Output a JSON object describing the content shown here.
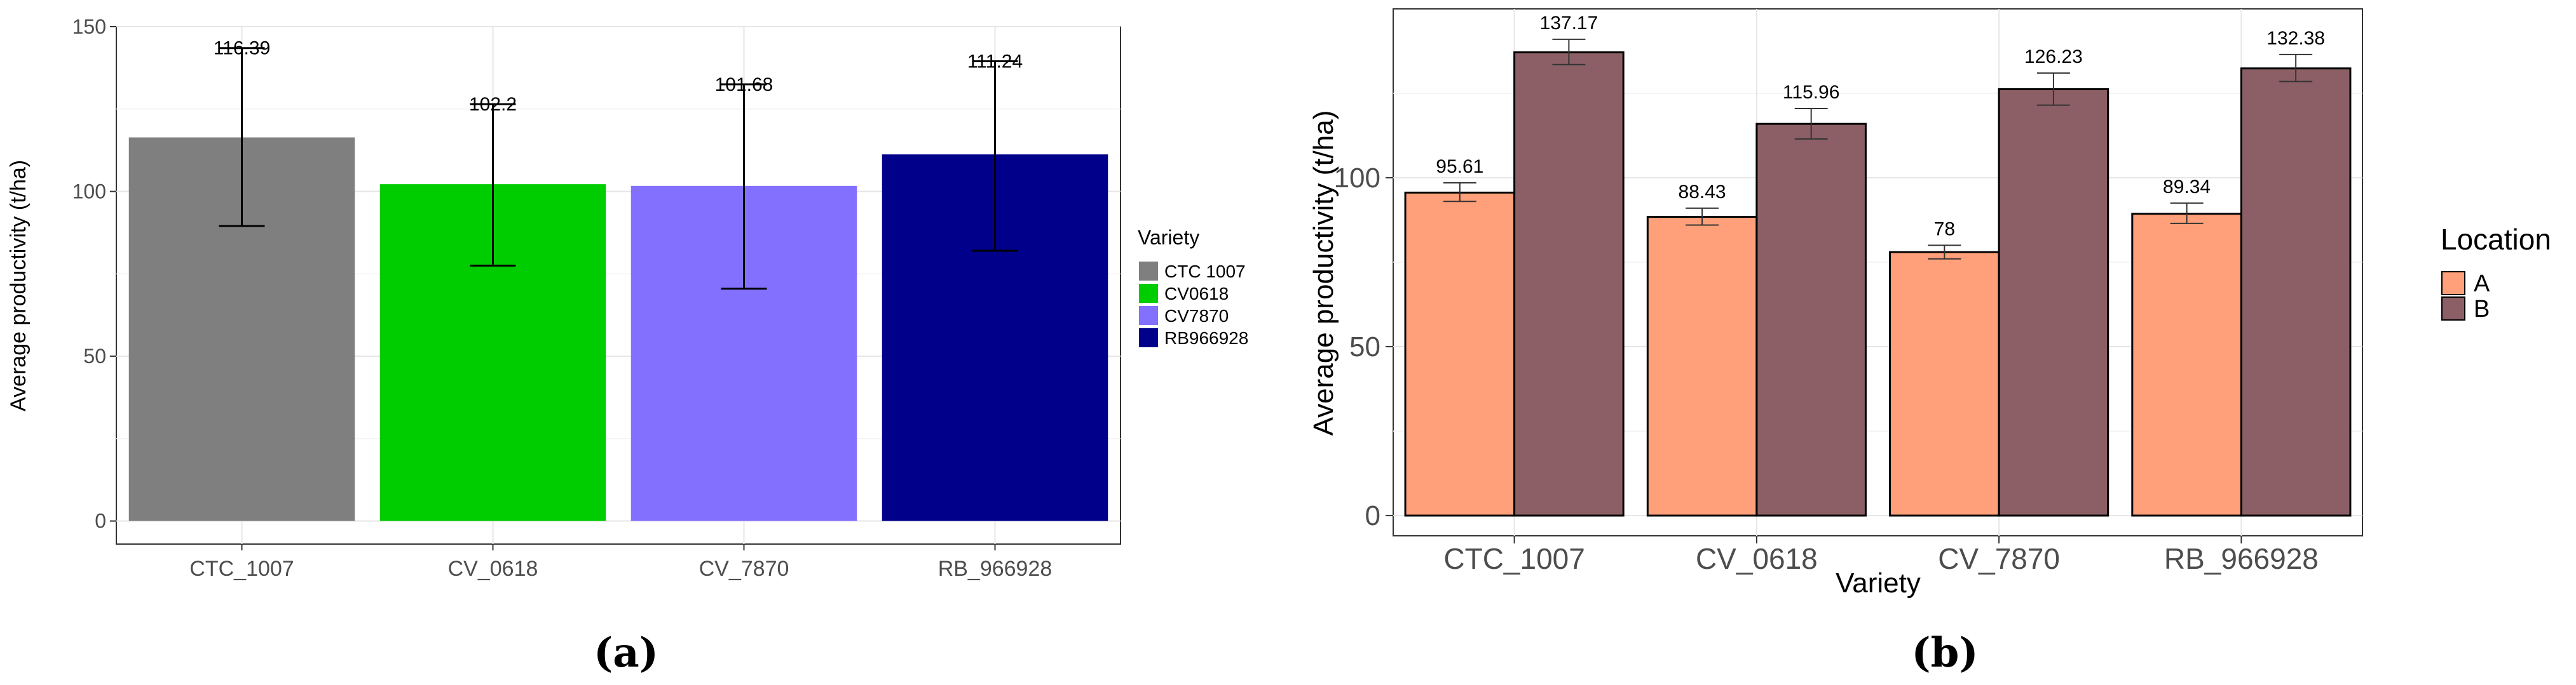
{
  "chart_data": [
    {
      "id": "a",
      "type": "bar",
      "panel_label": "(a)",
      "title": "",
      "xlabel": "",
      "ylabel": "Average productivity (t/ha)",
      "categories": [
        "CTC_1007",
        "CV_0618",
        "CV_7870",
        "RB_966928"
      ],
      "values": [
        116.39,
        102.2,
        101.68,
        111.24
      ],
      "value_labels": [
        "116.39",
        "102.2",
        "101.68",
        "111.24"
      ],
      "error_low": [
        89.5,
        77.5,
        70.5,
        82.0
      ],
      "error_high": [
        143.5,
        126.5,
        132.5,
        139.5
      ],
      "colors": [
        "#7f7f7f",
        "#00cd00",
        "#8470ff",
        "#00008b"
      ],
      "ylim": [
        -7,
        150
      ],
      "yticks": [
        0,
        50,
        100,
        150
      ],
      "ytick_labels": [
        "0",
        "50",
        "100",
        "150"
      ],
      "grid": true,
      "legend": {
        "title": "Variety",
        "position": "right",
        "entries": [
          "CTC 1007",
          "CV0618",
          "CV7870",
          "RB966928"
        ],
        "colors": [
          "#7f7f7f",
          "#00cd00",
          "#8470ff",
          "#00008b"
        ]
      }
    },
    {
      "id": "b",
      "type": "bar",
      "panel_label": "(b)",
      "title": "",
      "xlabel": "Variety",
      "ylabel": "Average productivity (t/ha)",
      "categories": [
        "CTC_1007",
        "CV_0618",
        "CV_7870",
        "RB_966928"
      ],
      "series": [
        {
          "name": "A",
          "color": "#ffa07a",
          "values": [
            95.61,
            88.43,
            78,
            89.34
          ],
          "value_labels": [
            "95.61",
            "88.43",
            "78",
            "89.34"
          ],
          "error_low": [
            93.0,
            86.0,
            76.0,
            86.5
          ],
          "error_high": [
            98.5,
            91.0,
            80.0,
            92.5
          ]
        },
        {
          "name": "B",
          "color": "#8b5f65",
          "values": [
            137.17,
            115.96,
            126.23,
            132.38
          ],
          "value_labels": [
            "137.17",
            "115.96",
            "126.23",
            "132.38"
          ],
          "error_low": [
            133.5,
            111.5,
            121.5,
            128.5
          ],
          "error_high": [
            141.0,
            120.5,
            131.0,
            136.5
          ]
        }
      ],
      "ylim": [
        -6,
        150
      ],
      "yticks": [
        0,
        50,
        100
      ],
      "ytick_labels": [
        "0",
        "50",
        "100"
      ],
      "grid": true,
      "legend": {
        "title": "Location",
        "position": "right",
        "entries": [
          "A",
          "B"
        ],
        "colors": [
          "#ffa07a",
          "#8b5f65"
        ]
      }
    }
  ]
}
